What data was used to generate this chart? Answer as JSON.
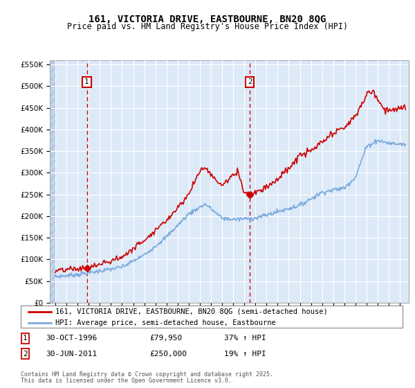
{
  "title_line1": "161, VICTORIA DRIVE, EASTBOURNE, BN20 8QG",
  "title_line2": "Price paid vs. HM Land Registry's House Price Index (HPI)",
  "background_color": "#dce9f7",
  "plot_bg_color": "#dce9f7",
  "outer_bg_color": "#ffffff",
  "hatch_color": "#c0d4ea",
  "grid_color": "#ffffff",
  "red_color": "#cc0000",
  "blue_color": "#7aaadd",
  "vline_color": "#cc0000",
  "legend_label_red": "161, VICTORIA DRIVE, EASTBOURNE, BN20 8QG (semi-detached house)",
  "legend_label_blue": "HPI: Average price, semi-detached house, Eastbourne",
  "marker1_date": 1996.83,
  "marker1_value": 79950,
  "marker2_date": 2011.5,
  "marker2_value": 250000,
  "footer_line1": "Contains HM Land Registry data © Crown copyright and database right 2025.",
  "footer_line2": "This data is licensed under the Open Government Licence v3.0.",
  "ylim_max": 560000,
  "ylim_min": 0,
  "xmin": 1993.5,
  "xmax": 2025.8
}
